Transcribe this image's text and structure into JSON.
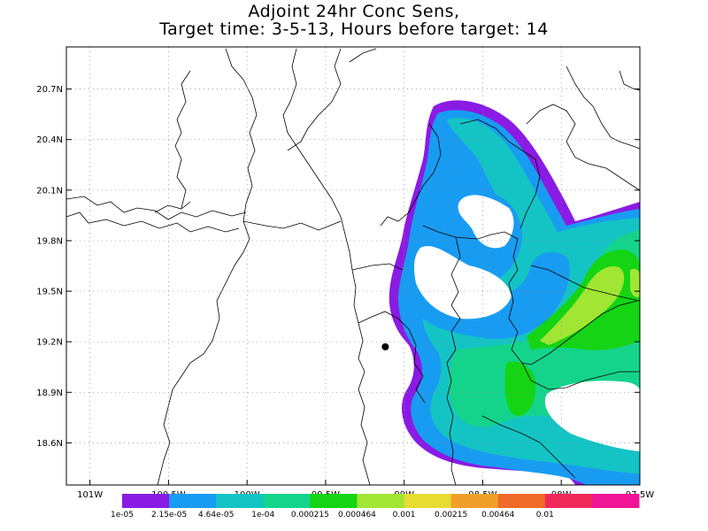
{
  "title": {
    "line1": "Adjoint 24hr Conc Sens,",
    "line2": "Target time: 3-5-13, Hours before target: 14"
  },
  "map": {
    "lon_range": [
      -101.15,
      -97.5
    ],
    "lat_range": [
      18.35,
      20.95
    ],
    "y_ticks": [
      {
        "lat": 20.7,
        "label": "20.7N"
      },
      {
        "lat": 20.4,
        "label": "20.4N"
      },
      {
        "lat": 20.1,
        "label": "20.1N"
      },
      {
        "lat": 19.8,
        "label": "19.8N"
      },
      {
        "lat": 19.5,
        "label": "19.5N"
      },
      {
        "lat": 19.2,
        "label": "19.2N"
      },
      {
        "lat": 18.9,
        "label": "18.9N"
      },
      {
        "lat": 18.6,
        "label": "18.6N"
      }
    ],
    "x_ticks": [
      {
        "lon": -101.0,
        "label": "101W"
      },
      {
        "lon": -100.5,
        "label": "100.5W"
      },
      {
        "lon": -100.0,
        "label": "100W"
      },
      {
        "lon": -99.5,
        "label": "99.5W"
      },
      {
        "lon": -99.0,
        "label": "99W"
      },
      {
        "lon": -98.5,
        "label": "98.5W"
      },
      {
        "lon": -98.0,
        "label": "98W"
      },
      {
        "lon": -97.5,
        "label": "97.5W"
      }
    ],
    "target_point": {
      "lon": -99.12,
      "lat": 19.17
    }
  },
  "colorbar": {
    "colors": [
      "#8a1be4",
      "#189cf2",
      "#14c4c4",
      "#14d48c",
      "#14d414",
      "#a0e632",
      "#e6dc32",
      "#f0a028",
      "#f06a28",
      "#f0285a",
      "#f01496"
    ],
    "labels": [
      "1e-05",
      "2.15e-05",
      "4.64e-05",
      "1e-04",
      "0.000215",
      "0.000464",
      "0.001",
      "0.00215",
      "0.00464",
      "0.01"
    ]
  }
}
